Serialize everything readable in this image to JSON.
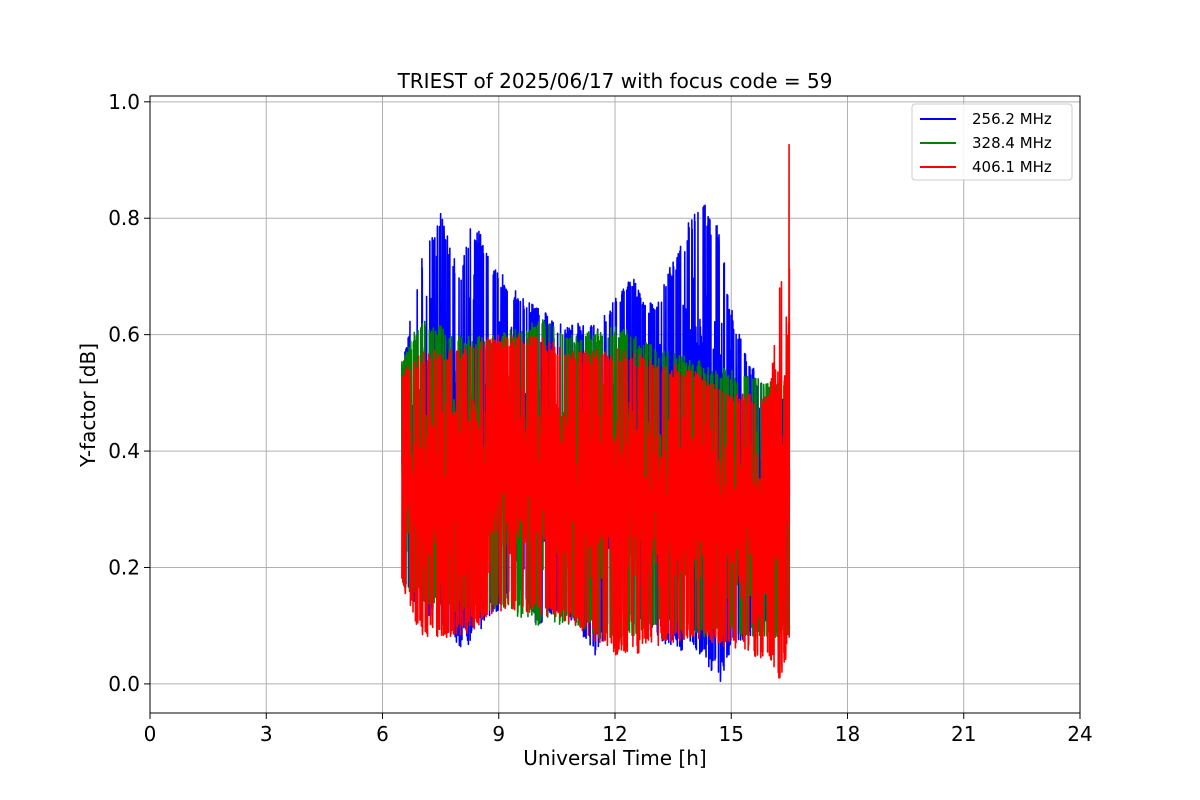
{
  "chart_data": {
    "type": "line",
    "title": "TRIEST of 2025/06/17 with focus code = 59",
    "xlabel": "Universal Time [h]",
    "ylabel": "Y-factor [dB]",
    "xlim": [
      0,
      24
    ],
    "ylim": [
      -0.05,
      1.01
    ],
    "xticks": [
      "0",
      "3",
      "6",
      "9",
      "12",
      "15",
      "18",
      "21",
      "24"
    ],
    "yticks": [
      "0.0",
      "0.2",
      "0.4",
      "0.6",
      "0.8",
      "1.0"
    ],
    "grid": true,
    "legend_position": "top-right",
    "time_range_h": [
      6.5,
      16.5
    ],
    "series": [
      {
        "name": "256.2 MHz",
        "color": "#0000ff",
        "envelope": [
          {
            "x": 6.5,
            "low": 0.17,
            "high": 0.55
          },
          {
            "x": 7.0,
            "low": 0.12,
            "high": 0.73
          },
          {
            "x": 7.5,
            "low": 0.1,
            "high": 0.81
          },
          {
            "x": 8.0,
            "low": 0.06,
            "high": 0.7
          },
          {
            "x": 8.3,
            "low": 0.07,
            "high": 0.81
          },
          {
            "x": 8.8,
            "low": 0.12,
            "high": 0.73
          },
          {
            "x": 9.5,
            "low": 0.14,
            "high": 0.67
          },
          {
            "x": 10.0,
            "low": 0.1,
            "high": 0.65
          },
          {
            "x": 10.5,
            "low": 0.12,
            "high": 0.62
          },
          {
            "x": 11.0,
            "low": 0.1,
            "high": 0.62
          },
          {
            "x": 11.5,
            "low": 0.04,
            "high": 0.62
          },
          {
            "x": 12.0,
            "low": 0.12,
            "high": 0.67
          },
          {
            "x": 12.5,
            "low": 0.1,
            "high": 0.7
          },
          {
            "x": 13.0,
            "low": 0.09,
            "high": 0.65
          },
          {
            "x": 13.5,
            "low": 0.05,
            "high": 0.73
          },
          {
            "x": 14.0,
            "low": 0.06,
            "high": 0.81
          },
          {
            "x": 14.3,
            "low": 0.04,
            "high": 0.83
          },
          {
            "x": 14.7,
            "low": 0.0,
            "high": 0.78
          },
          {
            "x": 15.0,
            "low": 0.06,
            "high": 0.65
          },
          {
            "x": 15.5,
            "low": 0.08,
            "high": 0.55
          },
          {
            "x": 16.0,
            "low": 0.09,
            "high": 0.5
          },
          {
            "x": 16.5,
            "low": 0.1,
            "high": 0.5
          }
        ]
      },
      {
        "name": "328.4 MHz",
        "color": "#008000",
        "envelope": [
          {
            "x": 6.5,
            "low": 0.17,
            "high": 0.56
          },
          {
            "x": 7.0,
            "low": 0.14,
            "high": 0.63
          },
          {
            "x": 8.0,
            "low": 0.12,
            "high": 0.6
          },
          {
            "x": 9.0,
            "low": 0.13,
            "high": 0.6
          },
          {
            "x": 10.0,
            "low": 0.1,
            "high": 0.63
          },
          {
            "x": 11.0,
            "low": 0.1,
            "high": 0.6
          },
          {
            "x": 12.0,
            "low": 0.06,
            "high": 0.62
          },
          {
            "x": 13.0,
            "low": 0.1,
            "high": 0.58
          },
          {
            "x": 14.0,
            "low": 0.08,
            "high": 0.56
          },
          {
            "x": 15.0,
            "low": 0.08,
            "high": 0.54
          },
          {
            "x": 16.0,
            "low": 0.08,
            "high": 0.52
          },
          {
            "x": 16.5,
            "low": 0.08,
            "high": 0.53
          }
        ]
      },
      {
        "name": "406.1 MHz",
        "color": "#ff0000",
        "envelope": [
          {
            "x": 6.5,
            "low": 0.17,
            "high": 0.54
          },
          {
            "x": 7.0,
            "low": 0.08,
            "high": 0.57
          },
          {
            "x": 8.0,
            "low": 0.08,
            "high": 0.58
          },
          {
            "x": 9.0,
            "low": 0.12,
            "high": 0.6
          },
          {
            "x": 10.0,
            "low": 0.12,
            "high": 0.6
          },
          {
            "x": 11.0,
            "low": 0.1,
            "high": 0.57
          },
          {
            "x": 12.0,
            "low": 0.04,
            "high": 0.58
          },
          {
            "x": 13.0,
            "low": 0.06,
            "high": 0.56
          },
          {
            "x": 14.0,
            "low": 0.08,
            "high": 0.54
          },
          {
            "x": 15.0,
            "low": 0.06,
            "high": 0.5
          },
          {
            "x": 16.0,
            "low": 0.04,
            "high": 0.5
          },
          {
            "x": 16.3,
            "low": 0.0,
            "high": 0.73
          },
          {
            "x": 16.5,
            "low": 0.08,
            "high": 0.96
          }
        ]
      }
    ]
  }
}
